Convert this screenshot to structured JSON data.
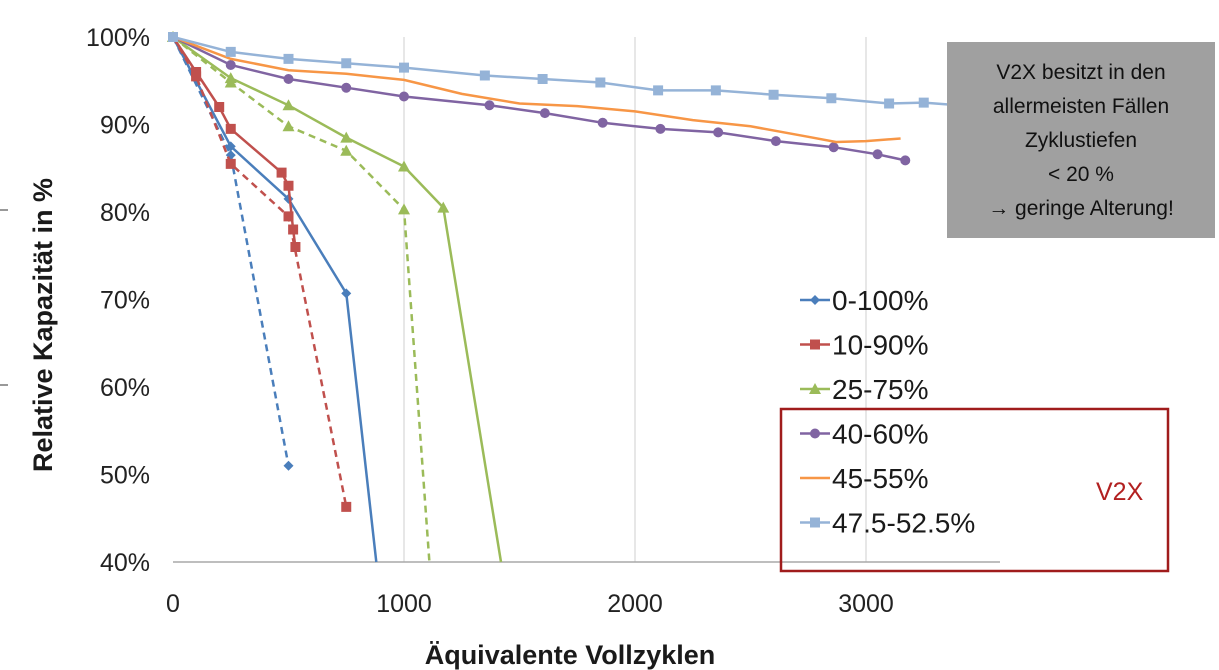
{
  "chart_data": {
    "type": "line",
    "title": "",
    "xlabel": "Äquivalente Vollzyklen",
    "ylabel": "Relative Kapazität in %",
    "xlim": [
      0,
      3500
    ],
    "ylim": [
      40,
      100
    ],
    "x_ticks": [
      "0",
      "1000",
      "2000",
      "3000"
    ],
    "y_ticks": [
      "40%",
      "50%",
      "60%",
      "70%",
      "80%",
      "90%",
      "100%"
    ],
    "grid": "vertical",
    "legend_position": "right",
    "series": [
      {
        "name": "0-100%",
        "color": "#4a7ebb",
        "marker": "diamond",
        "legend": true,
        "solid": [
          [
            0,
            100
          ],
          [
            250,
            87.5
          ],
          [
            500,
            81.5
          ],
          [
            750,
            70.7
          ],
          [
            880,
            40
          ]
        ],
        "dashed": [
          [
            0,
            100
          ],
          [
            250,
            86.5
          ],
          [
            500,
            51
          ]
        ]
      },
      {
        "name": "10-90%",
        "color": "#c0504d",
        "marker": "square",
        "legend": true,
        "solid": [
          [
            0,
            100
          ],
          [
            100,
            96
          ],
          [
            200,
            92
          ],
          [
            250,
            89.5
          ],
          [
            470,
            84.5
          ],
          [
            500,
            83
          ],
          [
            520,
            78
          ],
          [
            530,
            76
          ]
        ],
        "dashed": [
          [
            0,
            100
          ],
          [
            100,
            95.5
          ],
          [
            250,
            85.5
          ],
          [
            500,
            79.5
          ],
          [
            750,
            46.3
          ]
        ]
      },
      {
        "name": "25-75%",
        "color": "#9bbb59",
        "marker": "triangle",
        "legend": true,
        "solid": [
          [
            0,
            100
          ],
          [
            250,
            95.3
          ],
          [
            500,
            92.2
          ],
          [
            750,
            88.5
          ],
          [
            1000,
            85.2
          ],
          [
            1170,
            80.5
          ],
          [
            1420,
            40
          ]
        ],
        "dashed": [
          [
            0,
            100
          ],
          [
            250,
            94.8
          ],
          [
            500,
            89.8
          ],
          [
            750,
            87
          ],
          [
            1000,
            80.3
          ],
          [
            1110,
            40
          ]
        ]
      },
      {
        "name": "40-60%",
        "color": "#8064a2",
        "marker": "circle",
        "legend": true,
        "solid": [
          [
            0,
            100
          ],
          [
            250,
            96.8
          ],
          [
            500,
            95.2
          ],
          [
            750,
            94.2
          ],
          [
            1000,
            93.2
          ],
          [
            1370,
            92.2
          ],
          [
            1610,
            91.3
          ],
          [
            1860,
            90.2
          ],
          [
            2110,
            89.5
          ],
          [
            2360,
            89.1
          ],
          [
            2610,
            88.1
          ],
          [
            2860,
            87.4
          ],
          [
            3050,
            86.6
          ],
          [
            3170,
            85.9
          ]
        ]
      },
      {
        "name": "45-55%",
        "color": "#f79646",
        "marker": "none",
        "legend": true,
        "solid": [
          [
            0,
            100
          ],
          [
            250,
            97.5
          ],
          [
            500,
            96.2
          ],
          [
            750,
            95.8
          ],
          [
            1000,
            95.1
          ],
          [
            1250,
            93.5
          ],
          [
            1500,
            92.4
          ],
          [
            1750,
            92.1
          ],
          [
            2000,
            91.5
          ],
          [
            2250,
            90.5
          ],
          [
            2500,
            89.8
          ],
          [
            2750,
            88.6
          ],
          [
            2870,
            88
          ],
          [
            3000,
            88.1
          ],
          [
            3150,
            88.4
          ]
        ]
      },
      {
        "name": "47.5-52.5%",
        "color": "#95b3d7",
        "marker": "square",
        "legend": true,
        "solid": [
          [
            0,
            100
          ],
          [
            250,
            98.3
          ],
          [
            500,
            97.5
          ],
          [
            750,
            97
          ],
          [
            1000,
            96.5
          ],
          [
            1350,
            95.6
          ],
          [
            1600,
            95.2
          ],
          [
            1850,
            94.8
          ],
          [
            2100,
            93.9
          ],
          [
            2350,
            93.9
          ],
          [
            2600,
            93.4
          ],
          [
            2850,
            93
          ],
          [
            3100,
            92.4
          ],
          [
            3250,
            92.5
          ],
          [
            3500,
            92
          ]
        ]
      }
    ],
    "v2x_group_label": "V2X"
  },
  "annotation": {
    "lines": [
      "V2X besitzt in den",
      "allermeisten Fällen",
      "Zyklustiefen",
      "< 20 %",
      "→ geringe Alterung!"
    ]
  }
}
